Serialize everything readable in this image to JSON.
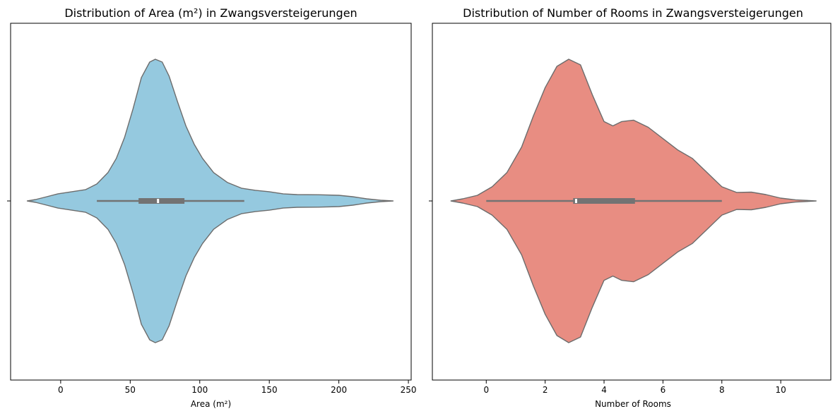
{
  "chart_data": [
    {
      "type": "violin",
      "orientation": "horizontal",
      "title": "Distribution of Area (m²) in Zwangsversteigerungen",
      "xlabel": "Area (m²)",
      "ylabel": "",
      "xlim": [
        -36,
        252
      ],
      "xticks": [
        0,
        50,
        100,
        150,
        200,
        250
      ],
      "grid": false,
      "legend": "none",
      "fill_color": "#95c9df",
      "edge_color": "#6c6c6c",
      "box_color": "#737373",
      "density_profile": [
        [
          -24,
          0.0
        ],
        [
          -18,
          0.01
        ],
        [
          -10,
          0.03
        ],
        [
          -2,
          0.05
        ],
        [
          8,
          0.065
        ],
        [
          18,
          0.08
        ],
        [
          26,
          0.12
        ],
        [
          34,
          0.2
        ],
        [
          40,
          0.3
        ],
        [
          46,
          0.45
        ],
        [
          52,
          0.65
        ],
        [
          58,
          0.87
        ],
        [
          64,
          0.98
        ],
        [
          68,
          1.0
        ],
        [
          73,
          0.98
        ],
        [
          78,
          0.88
        ],
        [
          84,
          0.7
        ],
        [
          90,
          0.53
        ],
        [
          96,
          0.4
        ],
        [
          102,
          0.3
        ],
        [
          110,
          0.2
        ],
        [
          120,
          0.13
        ],
        [
          130,
          0.09
        ],
        [
          140,
          0.075
        ],
        [
          150,
          0.065
        ],
        [
          160,
          0.05
        ],
        [
          170,
          0.045
        ],
        [
          185,
          0.044
        ],
        [
          200,
          0.04
        ],
        [
          210,
          0.03
        ],
        [
          220,
          0.015
        ],
        [
          230,
          0.005
        ],
        [
          239,
          0.0
        ]
      ],
      "box": {
        "whisker_low": 26,
        "q1": 56,
        "median": 70,
        "q3": 89,
        "whisker_high": 132
      }
    },
    {
      "type": "violin",
      "orientation": "horizontal",
      "title": "Distribution of Number of Rooms in Zwangsversteigerungen",
      "xlabel": "Number of Rooms",
      "ylabel": "",
      "xlim": [
        -1.83,
        11.7
      ],
      "xticks": [
        0,
        2,
        4,
        6,
        8,
        10
      ],
      "grid": false,
      "legend": "none",
      "fill_color": "#e88d82",
      "edge_color": "#6c6c6c",
      "box_color": "#737373",
      "density_profile": [
        [
          -1.2,
          0.0
        ],
        [
          -0.8,
          0.015
        ],
        [
          -0.3,
          0.04
        ],
        [
          0.2,
          0.1
        ],
        [
          0.7,
          0.2
        ],
        [
          1.2,
          0.38
        ],
        [
          1.6,
          0.6
        ],
        [
          2.0,
          0.8
        ],
        [
          2.4,
          0.95
        ],
        [
          2.8,
          1.0
        ],
        [
          3.2,
          0.96
        ],
        [
          3.6,
          0.75
        ],
        [
          4.0,
          0.56
        ],
        [
          4.3,
          0.53
        ],
        [
          4.6,
          0.56
        ],
        [
          5.0,
          0.57
        ],
        [
          5.5,
          0.52
        ],
        [
          6.0,
          0.44
        ],
        [
          6.5,
          0.36
        ],
        [
          7.0,
          0.3
        ],
        [
          7.5,
          0.2
        ],
        [
          8.0,
          0.1
        ],
        [
          8.5,
          0.06
        ],
        [
          9.0,
          0.062
        ],
        [
          9.5,
          0.045
        ],
        [
          10.0,
          0.02
        ],
        [
          10.5,
          0.008
        ],
        [
          11.2,
          0.0
        ]
      ],
      "box": {
        "whisker_low": 0,
        "q1": 2.95,
        "median": 3.05,
        "q3": 5.05,
        "whisker_high": 8.0
      }
    }
  ]
}
